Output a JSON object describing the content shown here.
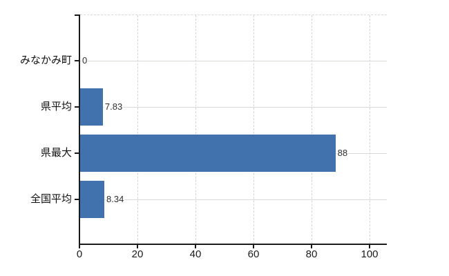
{
  "chart_data": {
    "type": "bar",
    "orientation": "horizontal",
    "title": "",
    "xlabel": "",
    "ylabel": "",
    "categories": [
      "みなかみ町",
      "県平均",
      "県最大",
      "全国平均"
    ],
    "values": [
      0,
      7.83,
      88,
      8.34
    ],
    "value_labels": [
      "0",
      "7.83",
      "88",
      "8.34"
    ],
    "x_ticks": [
      0,
      20,
      40,
      60,
      80,
      100
    ],
    "xlim": [
      0,
      106
    ],
    "grid": "both",
    "legend": "none",
    "bar_color": "#4272ae"
  }
}
